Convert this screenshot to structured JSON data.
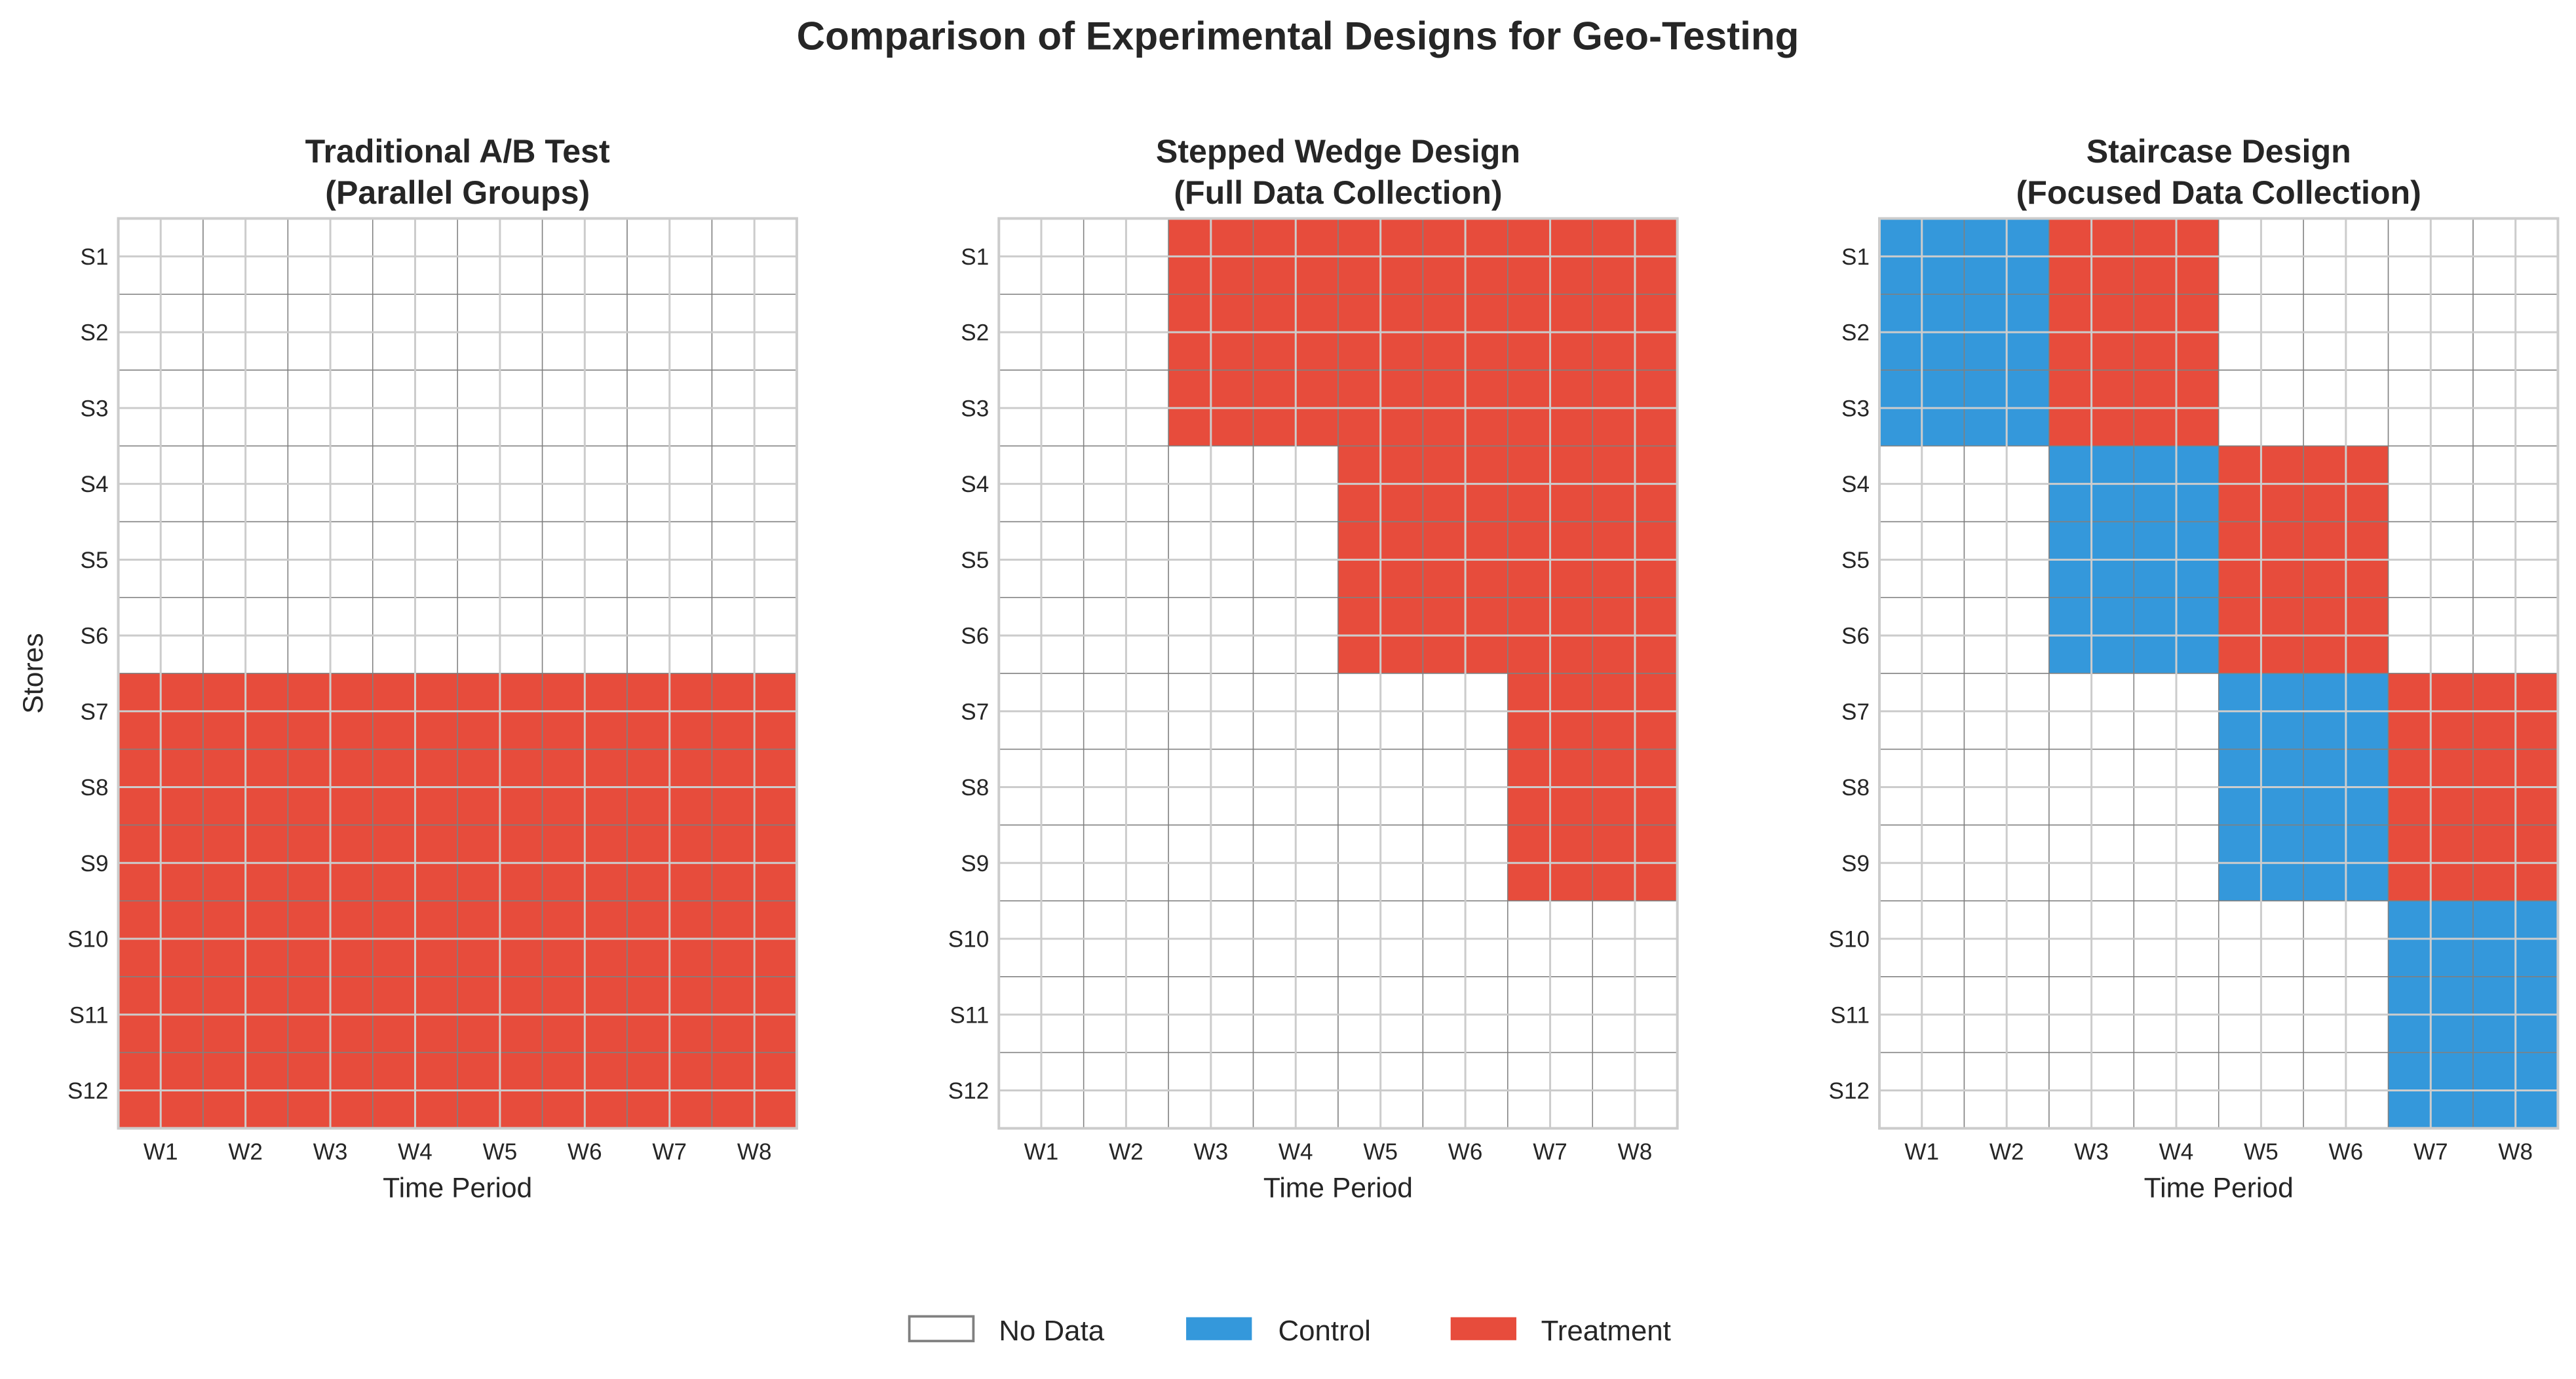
{
  "chart_data": {
    "title": "Comparison of Experimental Designs for Geo-Testing",
    "colors": {
      "No Data": "#ffffff",
      "Control": "#3498db",
      "Treatment": "#e74c3c"
    },
    "legend": {
      "placement": "bottom-center",
      "entries": [
        "No Data",
        "Control",
        "Treatment"
      ]
    },
    "panels": [
      {
        "type": "heatmap",
        "title": [
          "Traditional A/B Test",
          "(Parallel Groups)"
        ],
        "xlabel": "Time Period",
        "ylabel": "Stores",
        "x_categories": [
          "W1",
          "W2",
          "W3",
          "W4",
          "W5",
          "W6",
          "W7",
          "W8"
        ],
        "y_categories": [
          "S1",
          "S2",
          "S3",
          "S4",
          "S5",
          "S6",
          "S7",
          "S8",
          "S9",
          "S10",
          "S11",
          "S12"
        ],
        "grid": true,
        "values_legend": {
          "0": "No Data",
          "1": "Control",
          "2": "Treatment"
        },
        "values": [
          [
            0,
            0,
            0,
            0,
            0,
            0,
            0,
            0
          ],
          [
            0,
            0,
            0,
            0,
            0,
            0,
            0,
            0
          ],
          [
            0,
            0,
            0,
            0,
            0,
            0,
            0,
            0
          ],
          [
            0,
            0,
            0,
            0,
            0,
            0,
            0,
            0
          ],
          [
            0,
            0,
            0,
            0,
            0,
            0,
            0,
            0
          ],
          [
            0,
            0,
            0,
            0,
            0,
            0,
            0,
            0
          ],
          [
            2,
            2,
            2,
            2,
            2,
            2,
            2,
            2
          ],
          [
            2,
            2,
            2,
            2,
            2,
            2,
            2,
            2
          ],
          [
            2,
            2,
            2,
            2,
            2,
            2,
            2,
            2
          ],
          [
            2,
            2,
            2,
            2,
            2,
            2,
            2,
            2
          ],
          [
            2,
            2,
            2,
            2,
            2,
            2,
            2,
            2
          ],
          [
            2,
            2,
            2,
            2,
            2,
            2,
            2,
            2
          ]
        ]
      },
      {
        "type": "heatmap",
        "title": [
          "Stepped Wedge Design",
          "(Full Data Collection)"
        ],
        "xlabel": "Time Period",
        "ylabel": "",
        "x_categories": [
          "W1",
          "W2",
          "W3",
          "W4",
          "W5",
          "W6",
          "W7",
          "W8"
        ],
        "y_categories": [
          "S1",
          "S2",
          "S3",
          "S4",
          "S5",
          "S6",
          "S7",
          "S8",
          "S9",
          "S10",
          "S11",
          "S12"
        ],
        "grid": true,
        "values_legend": {
          "0": "No Data",
          "1": "Control",
          "2": "Treatment"
        },
        "values": [
          [
            0,
            0,
            2,
            2,
            2,
            2,
            2,
            2
          ],
          [
            0,
            0,
            2,
            2,
            2,
            2,
            2,
            2
          ],
          [
            0,
            0,
            2,
            2,
            2,
            2,
            2,
            2
          ],
          [
            0,
            0,
            0,
            0,
            2,
            2,
            2,
            2
          ],
          [
            0,
            0,
            0,
            0,
            2,
            2,
            2,
            2
          ],
          [
            0,
            0,
            0,
            0,
            2,
            2,
            2,
            2
          ],
          [
            0,
            0,
            0,
            0,
            0,
            0,
            2,
            2
          ],
          [
            0,
            0,
            0,
            0,
            0,
            0,
            2,
            2
          ],
          [
            0,
            0,
            0,
            0,
            0,
            0,
            2,
            2
          ],
          [
            0,
            0,
            0,
            0,
            0,
            0,
            0,
            0
          ],
          [
            0,
            0,
            0,
            0,
            0,
            0,
            0,
            0
          ],
          [
            0,
            0,
            0,
            0,
            0,
            0,
            0,
            0
          ]
        ]
      },
      {
        "type": "heatmap",
        "title": [
          "Staircase Design",
          "(Focused Data Collection)"
        ],
        "xlabel": "Time Period",
        "ylabel": "",
        "x_categories": [
          "W1",
          "W2",
          "W3",
          "W4",
          "W5",
          "W6",
          "W7",
          "W8"
        ],
        "y_categories": [
          "S1",
          "S2",
          "S3",
          "S4",
          "S5",
          "S6",
          "S7",
          "S8",
          "S9",
          "S10",
          "S11",
          "S12"
        ],
        "grid": true,
        "values_legend": {
          "0": "No Data",
          "1": "Control",
          "2": "Treatment"
        },
        "values": [
          [
            1,
            1,
            2,
            2,
            0,
            0,
            0,
            0
          ],
          [
            1,
            1,
            2,
            2,
            0,
            0,
            0,
            0
          ],
          [
            1,
            1,
            2,
            2,
            0,
            0,
            0,
            0
          ],
          [
            0,
            0,
            1,
            1,
            2,
            2,
            0,
            0
          ],
          [
            0,
            0,
            1,
            1,
            2,
            2,
            0,
            0
          ],
          [
            0,
            0,
            1,
            1,
            2,
            2,
            0,
            0
          ],
          [
            0,
            0,
            0,
            0,
            1,
            1,
            2,
            2
          ],
          [
            0,
            0,
            0,
            0,
            1,
            1,
            2,
            2
          ],
          [
            0,
            0,
            0,
            0,
            1,
            1,
            2,
            2
          ],
          [
            0,
            0,
            0,
            0,
            0,
            0,
            1,
            1
          ],
          [
            0,
            0,
            0,
            0,
            0,
            0,
            1,
            1
          ],
          [
            0,
            0,
            0,
            0,
            0,
            0,
            1,
            1
          ]
        ]
      }
    ]
  }
}
